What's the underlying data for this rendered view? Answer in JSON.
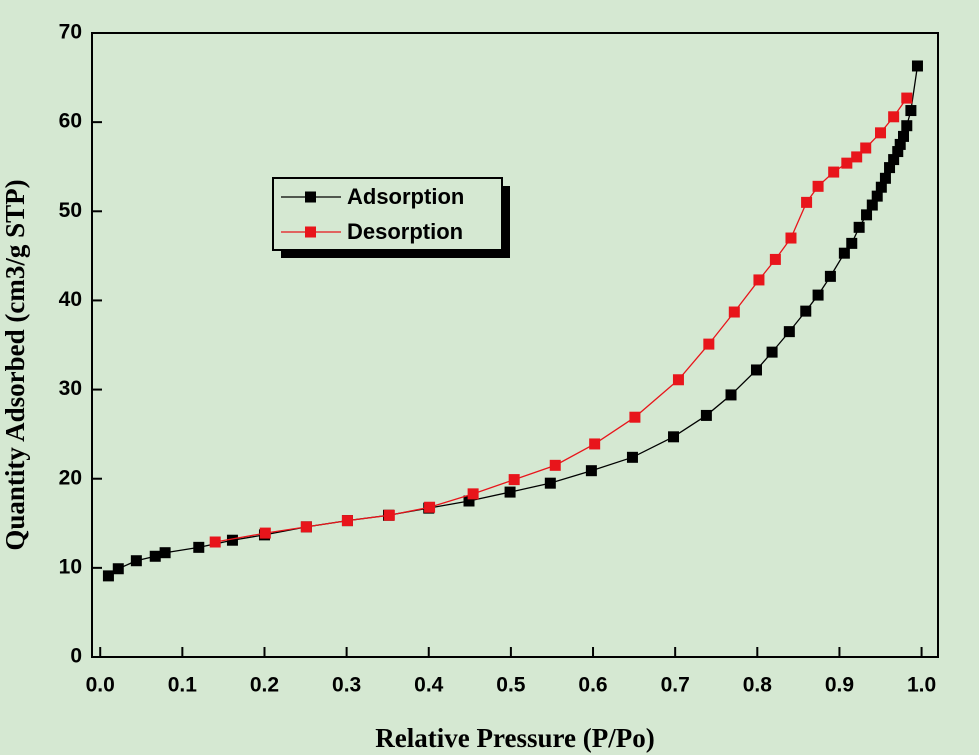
{
  "chart_data": {
    "type": "line",
    "xlabel": "Relative Pressure (P/Po)",
    "ylabel": "Quantity Adsorbed (cm3/g STP)",
    "xlim": [
      -0.01,
      1.02
    ],
    "ylim": [
      0,
      70
    ],
    "xticks": [
      {
        "value": 0,
        "label": "0.0"
      },
      0.1,
      0.2,
      0.3,
      0.4,
      0.5,
      0.6,
      0.7,
      0.8,
      0.9,
      {
        "value": 1,
        "label": "1.0"
      }
    ],
    "yticks": [
      0,
      10,
      20,
      30,
      40,
      50,
      60,
      70
    ],
    "legend": "upper left",
    "series": [
      {
        "name": "Adsorption",
        "color": "#000000",
        "x": [
          0.01,
          0.022,
          0.044,
          0.067,
          0.079,
          0.12,
          0.161,
          0.2,
          0.251,
          0.301,
          0.351,
          0.4,
          0.449,
          0.499,
          0.548,
          0.598,
          0.648,
          0.698,
          0.738,
          0.768,
          0.799,
          0.818,
          0.839,
          0.859,
          0.874,
          0.889,
          0.906,
          0.915,
          0.924,
          0.933,
          0.94,
          0.946,
          0.951,
          0.956,
          0.961,
          0.966,
          0.971,
          0.974,
          0.978,
          0.982,
          0.987,
          0.995
        ],
        "values": [
          9.1,
          9.9,
          10.8,
          11.3,
          11.7,
          12.3,
          13.1,
          13.7,
          14.6,
          15.3,
          15.9,
          16.7,
          17.5,
          18.5,
          19.5,
          20.9,
          22.4,
          24.7,
          27.1,
          29.4,
          32.2,
          34.2,
          36.5,
          38.8,
          40.6,
          42.7,
          45.3,
          46.4,
          48.2,
          49.6,
          50.7,
          51.7,
          52.7,
          53.7,
          54.9,
          55.8,
          56.7,
          57.5,
          58.4,
          59.6,
          61.3,
          66.3
        ]
      },
      {
        "name": "Desorption",
        "color": "#e8151b",
        "x": [
          0.982,
          0.966,
          0.95,
          0.932,
          0.921,
          0.909,
          0.893,
          0.874,
          0.86,
          0.841,
          0.822,
          0.802,
          0.772,
          0.741,
          0.704,
          0.651,
          0.602,
          0.554,
          0.504,
          0.454,
          0.401,
          0.352,
          0.301,
          0.251,
          0.201,
          0.14
        ],
        "values": [
          62.7,
          60.6,
          58.8,
          57.1,
          56.1,
          55.4,
          54.4,
          52.8,
          51.0,
          47.0,
          44.6,
          42.3,
          38.7,
          35.1,
          31.1,
          26.9,
          23.9,
          21.5,
          19.9,
          18.3,
          16.8,
          15.9,
          15.3,
          14.6,
          13.9,
          12.9
        ]
      }
    ]
  }
}
